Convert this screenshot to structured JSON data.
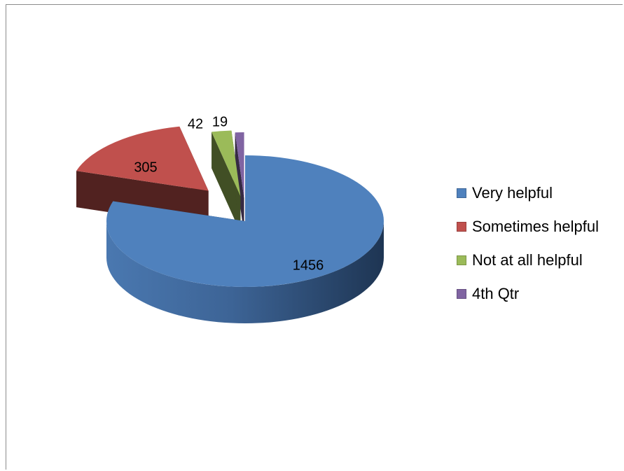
{
  "chart_data": {
    "type": "pie",
    "variant": "3d-exploded",
    "categories": [
      "Very helpful",
      "Sometimes helpful",
      "Not at all helpful",
      "4th Qtr"
    ],
    "values": [
      1456,
      305,
      42,
      19
    ],
    "colors": [
      "#4f81bd",
      "#c0504d",
      "#9bbb59",
      "#8064a2"
    ],
    "data_labels": [
      "1456",
      "305",
      "42",
      "19"
    ],
    "legend_position": "right"
  }
}
